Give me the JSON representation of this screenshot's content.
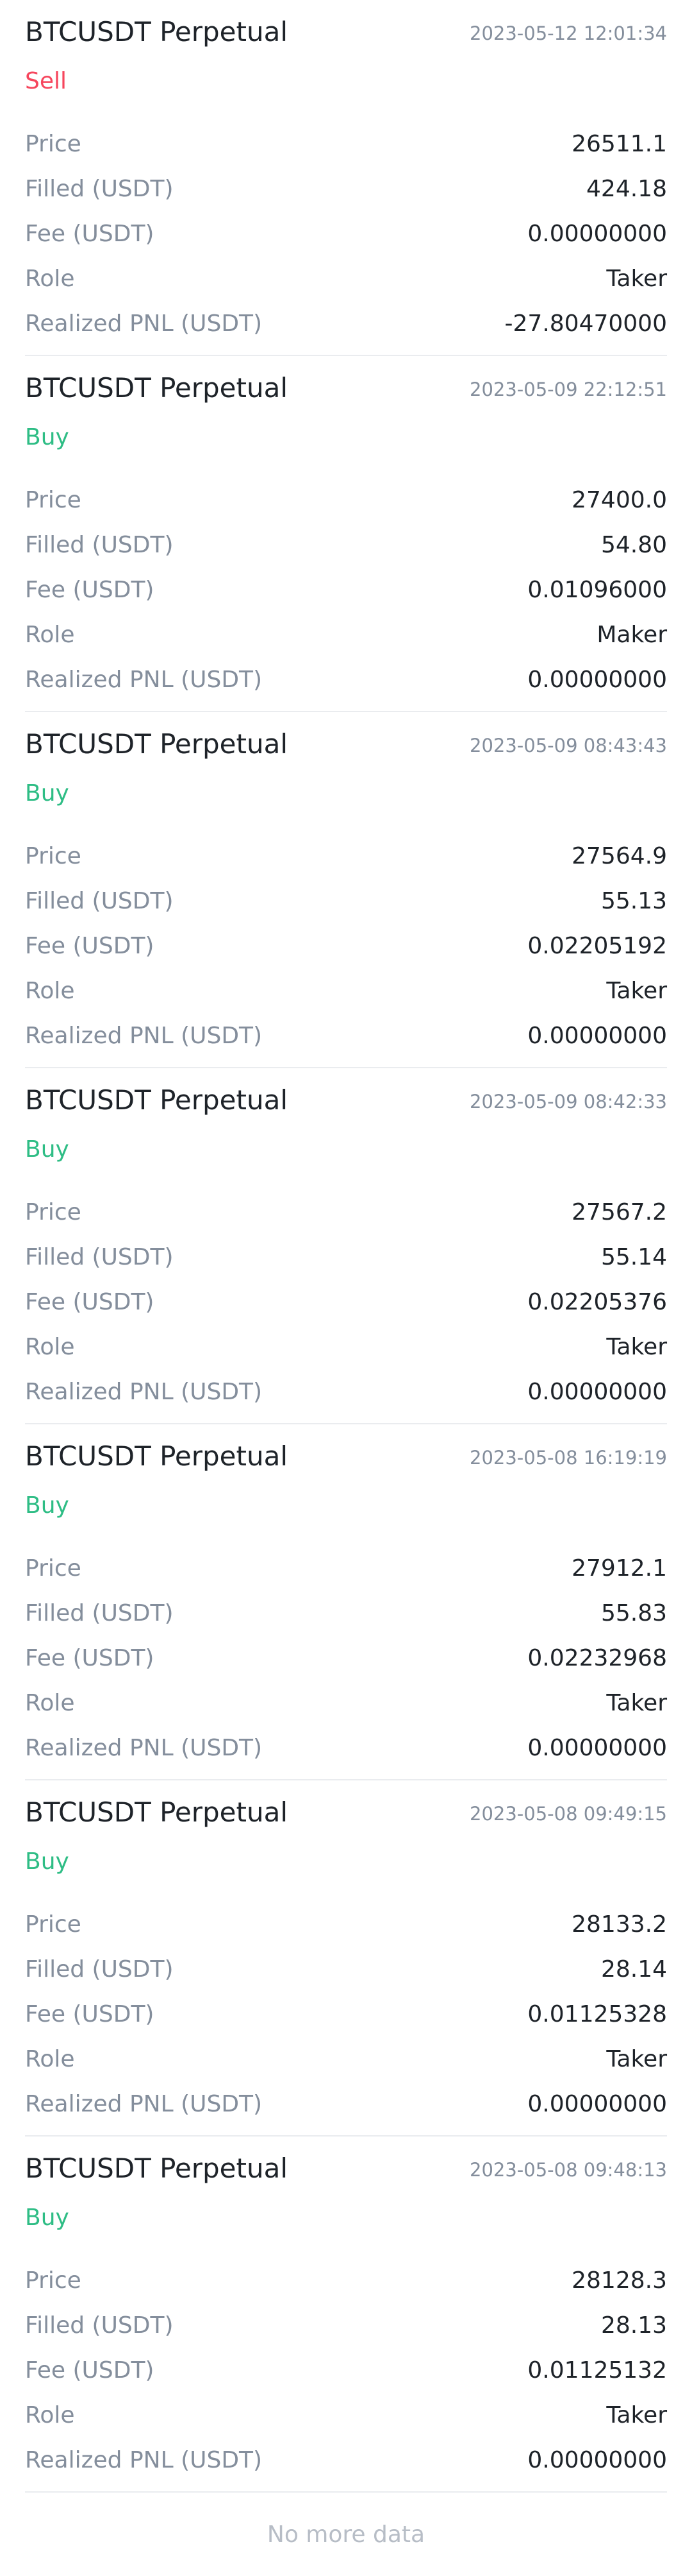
{
  "colors": {
    "sell": "#f6465d",
    "buy": "#2ebd85"
  },
  "labels": {
    "price": "Price",
    "filled": "Filled (USDT)",
    "fee": "Fee (USDT)",
    "role": "Role",
    "pnl": "Realized PNL (USDT)"
  },
  "trades": [
    {
      "symbol": "BTCUSDT Perpetual",
      "time": "2023-05-12 12:01:34",
      "side": "Sell",
      "side_type": "sell",
      "price": "26511.1",
      "filled": "424.18",
      "fee": "0.00000000",
      "role": "Taker",
      "pnl": "-27.80470000"
    },
    {
      "symbol": "BTCUSDT Perpetual",
      "time": "2023-05-09 22:12:51",
      "side": "Buy",
      "side_type": "buy",
      "price": "27400.0",
      "filled": "54.80",
      "fee": "0.01096000",
      "role": "Maker",
      "pnl": "0.00000000"
    },
    {
      "symbol": "BTCUSDT Perpetual",
      "time": "2023-05-09 08:43:43",
      "side": "Buy",
      "side_type": "buy",
      "price": "27564.9",
      "filled": "55.13",
      "fee": "0.02205192",
      "role": "Taker",
      "pnl": "0.00000000"
    },
    {
      "symbol": "BTCUSDT Perpetual",
      "time": "2023-05-09 08:42:33",
      "side": "Buy",
      "side_type": "buy",
      "price": "27567.2",
      "filled": "55.14",
      "fee": "0.02205376",
      "role": "Taker",
      "pnl": "0.00000000"
    },
    {
      "symbol": "BTCUSDT Perpetual",
      "time": "2023-05-08 16:19:19",
      "side": "Buy",
      "side_type": "buy",
      "price": "27912.1",
      "filled": "55.83",
      "fee": "0.02232968",
      "role": "Taker",
      "pnl": "0.00000000"
    },
    {
      "symbol": "BTCUSDT Perpetual",
      "time": "2023-05-08 09:49:15",
      "side": "Buy",
      "side_type": "buy",
      "price": "28133.2",
      "filled": "28.14",
      "fee": "0.01125328",
      "role": "Taker",
      "pnl": "0.00000000"
    },
    {
      "symbol": "BTCUSDT Perpetual",
      "time": "2023-05-08 09:48:13",
      "side": "Buy",
      "side_type": "buy",
      "price": "28128.3",
      "filled": "28.13",
      "fee": "0.01125132",
      "role": "Taker",
      "pnl": "0.00000000"
    }
  ],
  "footer": {
    "no_more": "No more data"
  }
}
